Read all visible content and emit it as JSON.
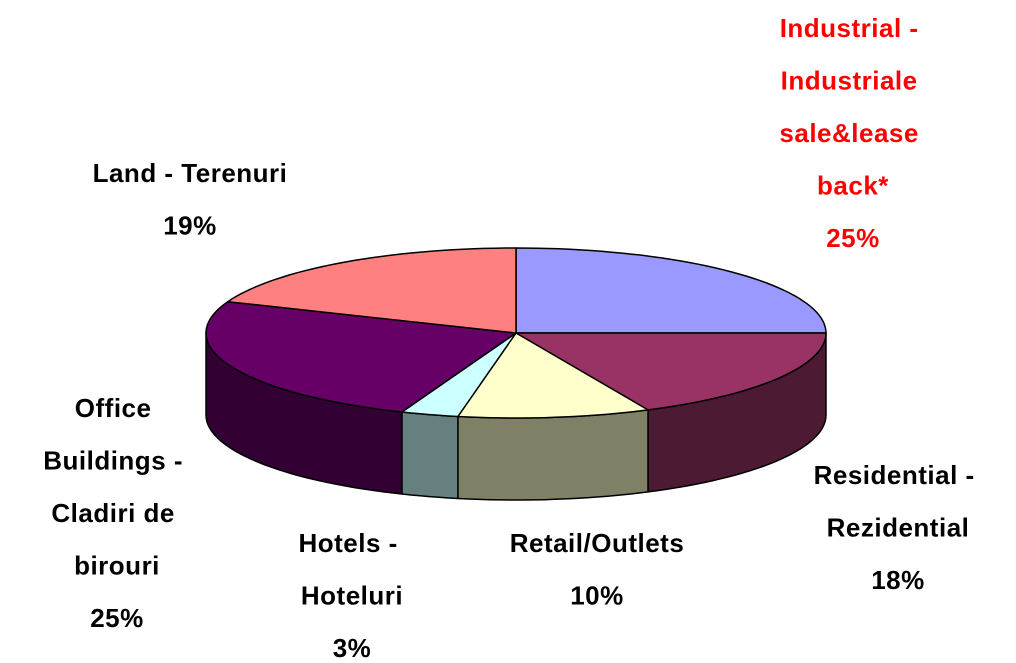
{
  "chart_data": {
    "type": "pie",
    "categories": [
      "Industrial - Industriale sale&lease back*",
      "Residential - Rezidential",
      "Retail/Outlets",
      "Hotels - Hoteluri",
      "Office Buildings - Cladiri de birouri",
      "Land - Terenuri"
    ],
    "values": [
      25,
      18,
      10,
      3,
      25,
      19
    ],
    "value_labels": [
      "25%",
      "18%",
      "10%",
      "3%",
      "25%",
      "19%"
    ],
    "colors": [
      "#9999ff",
      "#993366",
      "#ffffcc",
      "#ccffff",
      "#660066",
      "#ff8080"
    ],
    "label_colors": [
      "#ff0000",
      "#000000",
      "#000000",
      "#000000",
      "#000000",
      "#000000"
    ]
  }
}
